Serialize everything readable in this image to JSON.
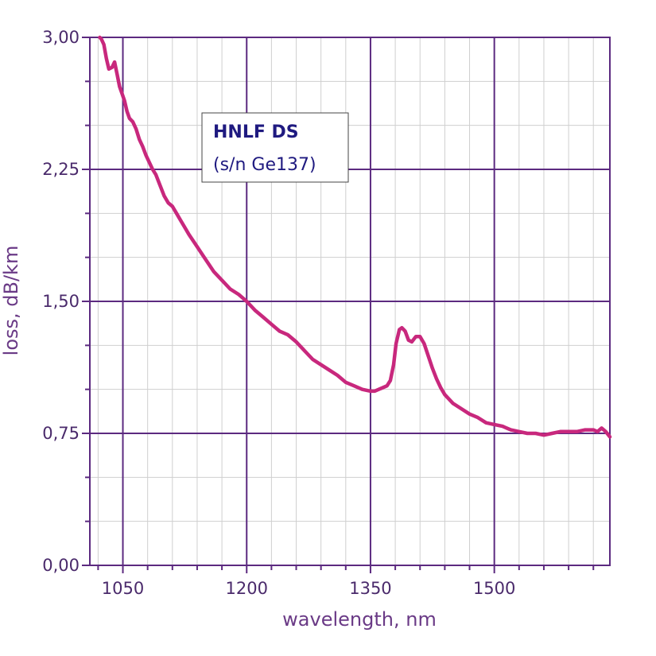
{
  "chart_data": {
    "type": "line",
    "xlabel": "wavelength, nm",
    "ylabel": "loss, dB/km",
    "xlim": [
      1010,
      1640
    ],
    "ylim": [
      0,
      3
    ],
    "x_ticks": [
      1050,
      1200,
      1350,
      1500
    ],
    "x_tick_labels": [
      "1050",
      "1200",
      "1350",
      "1500"
    ],
    "y_ticks": [
      0,
      0.75,
      1.5,
      2.25,
      3.0
    ],
    "y_tick_labels": [
      "0,00",
      "0,75",
      "1,50",
      "2,25",
      "3,00"
    ],
    "grid": true,
    "legend": {
      "placement": "top-left",
      "title": "HNLF DS",
      "subtitle": "(s/n Ge137)"
    },
    "series": [
      {
        "color": "#c8287d",
        "x": [
          1022,
          1024,
          1027,
          1030,
          1033,
          1037,
          1040,
          1043,
          1046,
          1049,
          1052,
          1055,
          1058,
          1062,
          1066,
          1070,
          1074,
          1078,
          1082,
          1086,
          1090,
          1095,
          1100,
          1105,
          1110,
          1115,
          1120,
          1125,
          1130,
          1140,
          1150,
          1160,
          1170,
          1180,
          1190,
          1200,
          1210,
          1220,
          1230,
          1240,
          1250,
          1260,
          1270,
          1280,
          1290,
          1300,
          1310,
          1320,
          1330,
          1340,
          1350,
          1355,
          1360,
          1365,
          1370,
          1374,
          1378,
          1381,
          1385,
          1388,
          1392,
          1396,
          1400,
          1405,
          1410,
          1415,
          1420,
          1425,
          1430,
          1435,
          1440,
          1450,
          1460,
          1470,
          1480,
          1490,
          1500,
          1510,
          1520,
          1530,
          1540,
          1550,
          1560,
          1570,
          1580,
          1590,
          1600,
          1610,
          1620,
          1625,
          1630,
          1635,
          1640
        ],
        "y": [
          3.0,
          2.99,
          2.96,
          2.88,
          2.82,
          2.83,
          2.86,
          2.79,
          2.72,
          2.68,
          2.64,
          2.58,
          2.54,
          2.52,
          2.48,
          2.42,
          2.38,
          2.33,
          2.29,
          2.25,
          2.22,
          2.16,
          2.1,
          2.06,
          2.04,
          2.0,
          1.96,
          1.92,
          1.88,
          1.81,
          1.74,
          1.67,
          1.62,
          1.57,
          1.54,
          1.5,
          1.45,
          1.41,
          1.37,
          1.33,
          1.31,
          1.27,
          1.22,
          1.17,
          1.14,
          1.11,
          1.08,
          1.04,
          1.02,
          1.0,
          0.99,
          0.99,
          1.0,
          1.01,
          1.02,
          1.05,
          1.14,
          1.26,
          1.34,
          1.35,
          1.33,
          1.28,
          1.27,
          1.3,
          1.3,
          1.26,
          1.19,
          1.12,
          1.06,
          1.01,
          0.97,
          0.92,
          0.89,
          0.86,
          0.84,
          0.81,
          0.8,
          0.79,
          0.77,
          0.76,
          0.75,
          0.75,
          0.74,
          0.75,
          0.76,
          0.76,
          0.76,
          0.77,
          0.77,
          0.76,
          0.78,
          0.76,
          0.73
        ]
      }
    ]
  }
}
